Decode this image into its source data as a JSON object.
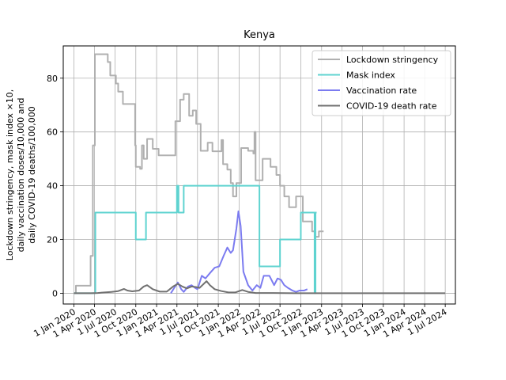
{
  "chart_data": {
    "type": "line",
    "title": "Kenya",
    "ylabel_lines": [
      "Lockdown stringency, mask index ×10,",
      "daily vaccination doses/10,000 and",
      "daily COVID-19 deaths/100,000"
    ],
    "xlabel": "",
    "x_ticks": [
      "2020-01-01",
      "2020-04-01",
      "2020-07-01",
      "2020-10-01",
      "2021-01-01",
      "2021-04-01",
      "2021-07-01",
      "2021-10-01",
      "2022-01-01",
      "2022-04-01",
      "2022-07-01",
      "2022-10-01",
      "2023-01-01",
      "2023-04-01",
      "2023-07-01",
      "2023-10-01",
      "2024-01-01",
      "2024-04-01",
      "2024-07-01"
    ],
    "x_tick_labels": [
      "1 Jan 2020",
      "1 Apr 2020",
      "1 Jul 2020",
      "1 Oct 2020",
      "1 Jan 2021",
      "1 Apr 2021",
      "1 Jul 2021",
      "1 Oct 2021",
      "1 Jan 2022",
      "1 Apr 2022",
      "1 Jul 2022",
      "1 Oct 2022",
      "1 Jan 2023",
      "1 Apr 2023",
      "1 Jul 2023",
      "1 Oct 2023",
      "1 Jan 2024",
      "1 Apr 2024",
      "1 Jul 2024"
    ],
    "xlim": [
      "2019-11-15",
      "2024-08-15"
    ],
    "y_ticks": [
      0,
      20,
      40,
      60,
      80
    ],
    "ylim": [
      -4,
      92
    ],
    "grid": true,
    "legend_position": "top-right",
    "series": [
      {
        "name": "Lockdown stringency",
        "color": "#b0b0b0",
        "step": true,
        "points": [
          [
            "2020-01-01",
            0
          ],
          [
            "2020-01-10",
            2.8
          ],
          [
            "2020-03-15",
            13.9
          ],
          [
            "2020-03-25",
            55
          ],
          [
            "2020-04-03",
            88.9
          ],
          [
            "2020-05-30",
            86
          ],
          [
            "2020-06-10",
            81
          ],
          [
            "2020-07-05",
            78
          ],
          [
            "2020-07-15",
            75
          ],
          [
            "2020-08-05",
            70.4
          ],
          [
            "2020-09-28",
            55
          ],
          [
            "2020-10-01",
            47
          ],
          [
            "2020-10-20",
            46.3
          ],
          [
            "2020-10-28",
            55
          ],
          [
            "2020-11-05",
            50
          ],
          [
            "2020-11-20",
            57.4
          ],
          [
            "2020-12-15",
            53.7
          ],
          [
            "2021-01-10",
            51.3
          ],
          [
            "2021-03-25",
            64
          ],
          [
            "2021-04-15",
            72
          ],
          [
            "2021-05-01",
            74.1
          ],
          [
            "2021-05-25",
            66
          ],
          [
            "2021-06-10",
            68
          ],
          [
            "2021-06-25",
            63
          ],
          [
            "2021-07-15",
            53
          ],
          [
            "2021-08-15",
            56
          ],
          [
            "2021-09-05",
            52.8
          ],
          [
            "2021-10-15",
            57
          ],
          [
            "2021-10-22",
            48
          ],
          [
            "2021-11-10",
            46
          ],
          [
            "2021-11-25",
            41
          ],
          [
            "2021-12-05",
            36
          ],
          [
            "2021-12-20",
            41
          ],
          [
            "2022-01-10",
            54
          ],
          [
            "2022-02-10",
            53
          ],
          [
            "2022-03-05",
            52
          ],
          [
            "2022-03-10",
            60
          ],
          [
            "2022-03-15",
            42
          ],
          [
            "2022-04-15",
            50
          ],
          [
            "2022-05-20",
            47
          ],
          [
            "2022-06-15",
            44
          ],
          [
            "2022-07-01",
            40
          ],
          [
            "2022-07-20",
            36
          ],
          [
            "2022-08-10",
            32
          ],
          [
            "2022-09-10",
            36
          ],
          [
            "2022-10-10",
            26.7
          ],
          [
            "2022-11-20",
            23
          ],
          [
            "2022-12-05",
            21
          ],
          [
            "2022-12-20",
            23
          ]
        ],
        "end": "2023-01-10"
      },
      {
        "name": "Mask index",
        "color": "#5fd3d0",
        "step": true,
        "points": [
          [
            "2020-01-01",
            0
          ],
          [
            "2020-04-05",
            30
          ],
          [
            "2020-10-01",
            20
          ],
          [
            "2020-11-15",
            30
          ],
          [
            "2021-04-01",
            40
          ],
          [
            "2021-04-08",
            30
          ],
          [
            "2021-05-01",
            40
          ],
          [
            "2022-04-01",
            10
          ],
          [
            "2022-07-01",
            20
          ],
          [
            "2022-10-01",
            30
          ],
          [
            "2022-12-01",
            0
          ],
          [
            "2022-12-05",
            30
          ]
        ],
        "end": "2022-12-10"
      },
      {
        "name": "Vaccination rate",
        "color": "#7b7bf0",
        "step": false,
        "points": [
          [
            "2021-03-05",
            0
          ],
          [
            "2021-03-20",
            2
          ],
          [
            "2021-04-05",
            4
          ],
          [
            "2021-04-20",
            1.5
          ],
          [
            "2021-05-01",
            0.5
          ],
          [
            "2021-05-20",
            2.5
          ],
          [
            "2021-06-05",
            3
          ],
          [
            "2021-06-20",
            2
          ],
          [
            "2021-07-01",
            1.5
          ],
          [
            "2021-07-20",
            6.5
          ],
          [
            "2021-08-05",
            5.5
          ],
          [
            "2021-08-25",
            7.5
          ],
          [
            "2021-09-15",
            9.5
          ],
          [
            "2021-10-05",
            10
          ],
          [
            "2021-10-25",
            14
          ],
          [
            "2021-11-10",
            17
          ],
          [
            "2021-11-25",
            15
          ],
          [
            "2021-12-05",
            16
          ],
          [
            "2021-12-20",
            24
          ],
          [
            "2021-12-29",
            30.5
          ],
          [
            "2022-01-08",
            25
          ],
          [
            "2022-01-20",
            8
          ],
          [
            "2022-02-10",
            3
          ],
          [
            "2022-03-01",
            1
          ],
          [
            "2022-03-20",
            3
          ],
          [
            "2022-04-05",
            2
          ],
          [
            "2022-04-20",
            6.5
          ],
          [
            "2022-05-15",
            6.5
          ],
          [
            "2022-06-05",
            3
          ],
          [
            "2022-06-20",
            5.5
          ],
          [
            "2022-07-05",
            5
          ],
          [
            "2022-07-20",
            3
          ],
          [
            "2022-08-05",
            2
          ],
          [
            "2022-08-25",
            1
          ],
          [
            "2022-09-10",
            0.5
          ],
          [
            "2022-09-25",
            1
          ],
          [
            "2022-10-15",
            1
          ],
          [
            "2022-10-30",
            1.5
          ]
        ]
      },
      {
        "name": "COVID-19 death rate",
        "color": "#707070",
        "step": false,
        "points": [
          [
            "2020-01-01",
            0
          ],
          [
            "2020-03-15",
            0
          ],
          [
            "2020-04-15",
            0.1
          ],
          [
            "2020-06-15",
            0.5
          ],
          [
            "2020-07-15",
            0.8
          ],
          [
            "2020-08-10",
            1.6
          ],
          [
            "2020-08-25",
            1
          ],
          [
            "2020-09-15",
            0.7
          ],
          [
            "2020-10-15",
            1
          ],
          [
            "2020-11-05",
            2.5
          ],
          [
            "2020-11-20",
            3
          ],
          [
            "2020-12-15",
            1.5
          ],
          [
            "2021-01-15",
            0.6
          ],
          [
            "2021-02-15",
            0.6
          ],
          [
            "2021-03-15",
            2.5
          ],
          [
            "2021-04-05",
            3.5
          ],
          [
            "2021-04-25",
            2.5
          ],
          [
            "2021-05-15",
            1.8
          ],
          [
            "2021-06-05",
            2.5
          ],
          [
            "2021-06-25",
            2.3
          ],
          [
            "2021-07-10",
            2
          ],
          [
            "2021-08-10",
            4.5
          ],
          [
            "2021-08-25",
            3
          ],
          [
            "2021-09-15",
            1.5
          ],
          [
            "2021-10-15",
            0.8
          ],
          [
            "2021-11-15",
            0.3
          ],
          [
            "2021-12-15",
            0.3
          ],
          [
            "2022-01-15",
            1.2
          ],
          [
            "2022-02-10",
            0.5
          ],
          [
            "2022-03-15",
            0.1
          ],
          [
            "2022-06-01",
            0.1
          ],
          [
            "2022-09-01",
            0
          ],
          [
            "2024-07-01",
            0
          ]
        ]
      }
    ]
  }
}
